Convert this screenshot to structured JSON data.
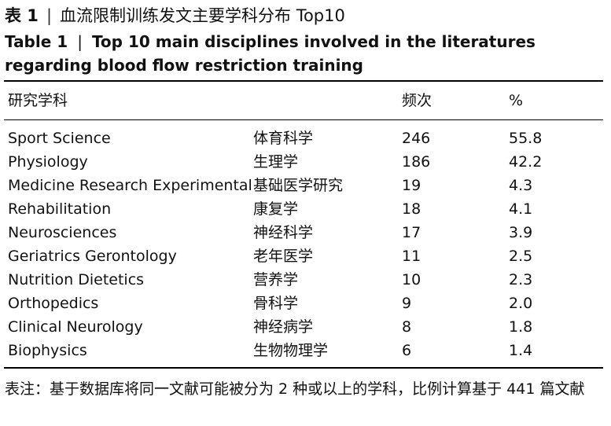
{
  "caption": {
    "cn_label": "表 1",
    "cn_title": "血流限制训练发文主要学科分布 Top10",
    "en_label": "Table 1",
    "en_title": "Top 10 main disciplines involved in the literatures regarding blood flow restriction training",
    "separator": "|"
  },
  "table": {
    "headers": [
      "研究学科",
      "",
      "频次",
      "%"
    ],
    "rows": [
      {
        "en": "Sport Science",
        "cn": "体育科学",
        "freq": "246",
        "pct": "55.8"
      },
      {
        "en": "Physiology",
        "cn": "生理学",
        "freq": "186",
        "pct": "42.2"
      },
      {
        "en": "Medicine Research Experimental",
        "cn": "基础医学研究",
        "freq": "19",
        "pct": "4.3"
      },
      {
        "en": "Rehabilitation",
        "cn": "康复学",
        "freq": "18",
        "pct": "4.1"
      },
      {
        "en": "Neurosciences",
        "cn": "神经科学",
        "freq": "17",
        "pct": "3.9"
      },
      {
        "en": "Geriatrics Gerontology",
        "cn": "老年医学",
        "freq": "11",
        "pct": "2.5"
      },
      {
        "en": "Nutrition Dietetics",
        "cn": "营养学",
        "freq": "10",
        "pct": "2.3"
      },
      {
        "en": "Orthopedics",
        "cn": "骨科学",
        "freq": "9",
        "pct": "2.0"
      },
      {
        "en": "Clinical Neurology",
        "cn": "神经病学",
        "freq": "8",
        "pct": "1.8"
      },
      {
        "en": "Biophysics",
        "cn": "生物物理学",
        "freq": "6",
        "pct": "1.4"
      }
    ]
  },
  "note": "表注：基于数据库将同一文献可能被分为 2 种或以上的学科，比例计算基于 441 篇文献"
}
